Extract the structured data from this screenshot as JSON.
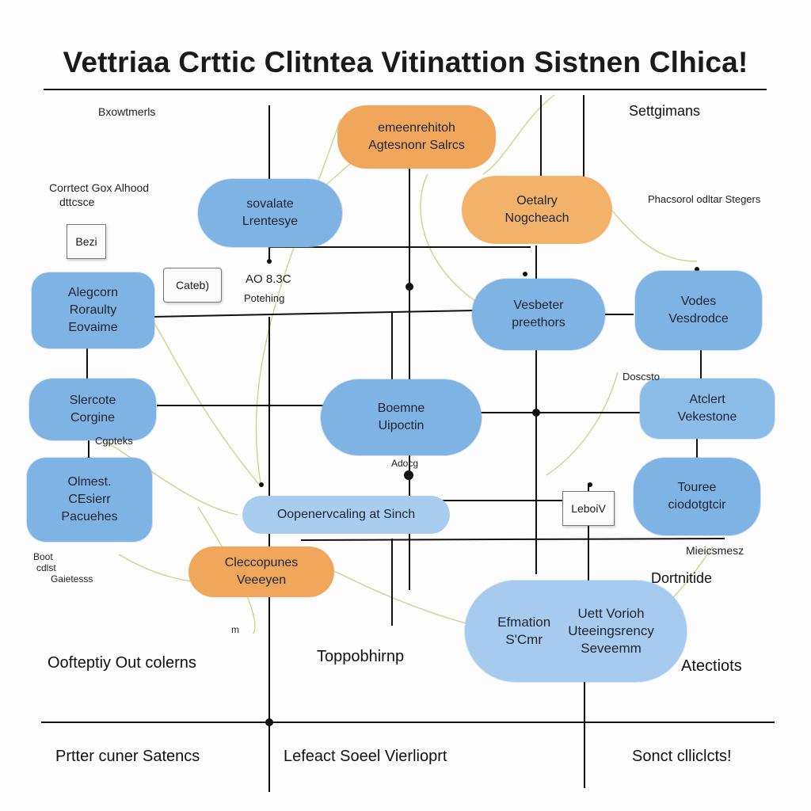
{
  "title": "Vettriaa Crttic Clitntea  Vitinattion Sistnen Clhica!",
  "labels": {
    "top_left": "Bxowtmerls",
    "top_right": "Settgimans",
    "corrtect_1": "Corrtect Gox Alhood",
    "corrtect_2": "dttcsce",
    "right_small": "Phacsorol odltar Stegers",
    "aob": "AO 8.3C",
    "potehing": "Potehing",
    "cgpteks": "Cgpteks",
    "doscsto": "Doscsto",
    "adocg": "Adocg",
    "boot": "Boot",
    "cdlst": "cdlst",
    "gaietesss": "Gaietesss",
    "m": "m",
    "mieicsmesz": "Mieicsmesz",
    "bottom_left": "Oofteptiy Out colerns",
    "bottom_mid": "Toppobhirnp",
    "dortnitide": "Dortnitide",
    "atectiots": "Atectiots",
    "footer_1": "Prtter cuner Satencs",
    "footer_2": "Lefeact Soeel Vierlioprt",
    "footer_3": "Sonct clliclcts!"
  },
  "boxes": {
    "bezi": "Bezi",
    "cateb": "Cateb)",
    "leboiv": "LeboiV"
  },
  "nodes": {
    "orange_top": [
      "emeenrehitoh",
      "Agtesnonr Salrcs"
    ],
    "sovalate": [
      "sovalate",
      "Lrentesye"
    ],
    "oetalry": [
      "Oetalry",
      "Nogcheach"
    ],
    "algcorn": [
      "Alegcorn",
      "Roraulty",
      "Eovaime"
    ],
    "vesbeter": [
      "Vesbeter",
      "preethors"
    ],
    "vodes": [
      "Vodes",
      "Vesdrodce"
    ],
    "slercote": [
      "Slercote",
      "Corgine"
    ],
    "boemne": [
      "Boemne",
      "Uipoctin"
    ],
    "atclert": [
      "Atclert",
      "Vekestone"
    ],
    "olmest": [
      "Olmest.",
      "CEsierr",
      "Pacuehes"
    ],
    "opener": [
      "Oopenervcaling at Sinch"
    ],
    "touree": [
      "Touree",
      "ciodotgtcir"
    ],
    "clecopunes": [
      "Cleccopunes",
      "Veeeyen"
    ],
    "efmation_a": [
      "Efmation",
      "S'Cmr"
    ],
    "efmation_b": [
      "Uett Vorioh",
      "Uteeingsrency",
      "Seveemm"
    ]
  },
  "colors": {
    "blue": "#7fb3e4",
    "orange": "#f0a75c",
    "line": "#111111",
    "thin": "#c6d48a"
  }
}
